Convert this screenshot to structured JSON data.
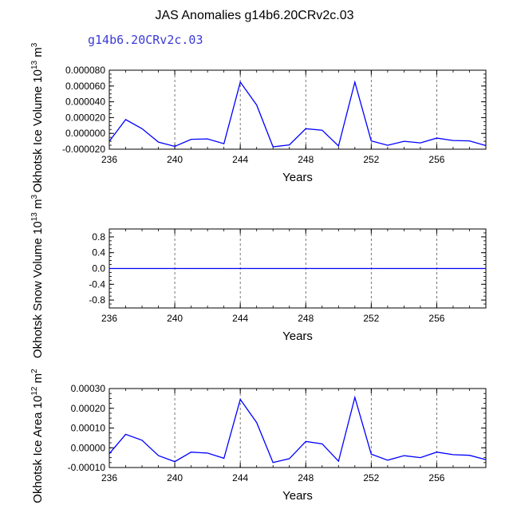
{
  "page_title": "JAS Anomalies g14b6.20CRv2c.03",
  "case_label": "g14b6.20CRv2c.03",
  "colors": {
    "series": "#0000ff",
    "case_label": "#3b3bd6",
    "axis": "#000000",
    "grid": "#555555"
  },
  "chart_data": [
    {
      "type": "line",
      "title": "",
      "ylabel": "Okhotsk Ice Volume",
      "ylabel_unit": "10",
      "ylabel_exp1": "13",
      "ylabel_unit2": "m",
      "ylabel_exp2": "3",
      "xlabel": "Years",
      "xlim": [
        236,
        259
      ],
      "ylim": [
        -2e-05,
        8e-05
      ],
      "xticks": [
        236,
        240,
        244,
        248,
        252,
        256
      ],
      "xtick_labels": [
        "236",
        "240",
        "244",
        "248",
        "252",
        "256"
      ],
      "yticks": [
        -2e-05,
        0.0,
        2e-05,
        4e-05,
        6e-05,
        8e-05
      ],
      "ytick_labels": [
        "-0.000020",
        "0.000000",
        "0.000020",
        "0.000040",
        "0.000060",
        "0.000080"
      ],
      "grid_x": [
        240,
        244,
        248,
        252,
        256
      ],
      "series": [
        {
          "name": "Okhotsk Ice Volume",
          "x": [
            236,
            237,
            238,
            239,
            240,
            241,
            242,
            243,
            244,
            245,
            246,
            247,
            248,
            249,
            250,
            251,
            252,
            253,
            254,
            255,
            256,
            257,
            258,
            259
          ],
          "values": [
            -1e-05,
            1.75e-05,
            6e-06,
            -1.1e-05,
            -1.65e-05,
            -7.5e-06,
            -7e-06,
            -1.3e-05,
            6.5e-05,
            3.6e-05,
            -1.7e-05,
            -1.45e-05,
            6e-06,
            4e-06,
            -1.6e-05,
            6.5e-05,
            -9.5e-06,
            -1.5e-05,
            -1e-05,
            -1.2e-05,
            -6e-06,
            -9e-06,
            -9.5e-06,
            -1.55e-05
          ]
        }
      ]
    },
    {
      "type": "line",
      "title": "",
      "ylabel": "Okhotsk Snow Volume",
      "ylabel_unit": "10",
      "ylabel_exp1": "13",
      "ylabel_unit2": "m",
      "ylabel_exp2": "3",
      "xlabel": "Years",
      "xlim": [
        236,
        259
      ],
      "ylim": [
        -1.0,
        1.0
      ],
      "xticks": [
        236,
        240,
        244,
        248,
        252,
        256
      ],
      "xtick_labels": [
        "236",
        "240",
        "244",
        "248",
        "252",
        "256"
      ],
      "yticks": [
        -0.8,
        -0.4,
        0.0,
        0.4,
        0.8
      ],
      "ytick_labels": [
        "-0.8",
        "-0.4",
        "0.0",
        "0.4",
        "0.8"
      ],
      "grid_x": [
        240,
        244,
        248,
        252,
        256
      ],
      "series": [
        {
          "name": "Okhotsk Snow Volume",
          "x": [
            236,
            237,
            238,
            239,
            240,
            241,
            242,
            243,
            244,
            245,
            246,
            247,
            248,
            249,
            250,
            251,
            252,
            253,
            254,
            255,
            256,
            257,
            258,
            259
          ],
          "values": [
            0,
            0,
            0,
            0,
            0,
            0,
            0,
            0,
            0,
            0,
            0,
            0,
            0,
            0,
            0,
            0,
            0,
            0,
            0,
            0,
            0,
            0,
            0,
            0
          ]
        }
      ]
    },
    {
      "type": "line",
      "title": "",
      "ylabel": "Okhotsk Ice Area",
      "ylabel_unit": "10",
      "ylabel_exp1": "12",
      "ylabel_unit2": "m",
      "ylabel_exp2": "2",
      "xlabel": "Years",
      "xlim": [
        236,
        259
      ],
      "ylim": [
        -0.0001,
        0.0003
      ],
      "xticks": [
        236,
        240,
        244,
        248,
        252,
        256
      ],
      "xtick_labels": [
        "236",
        "240",
        "244",
        "248",
        "252",
        "256"
      ],
      "yticks": [
        -0.0001,
        0.0,
        0.0001,
        0.0002,
        0.0003
      ],
      "ytick_labels": [
        "-0.00010",
        "0.00000",
        "0.00010",
        "0.00020",
        "0.00030"
      ],
      "grid_x": [
        240,
        244,
        248,
        252,
        256
      ],
      "series": [
        {
          "name": "Okhotsk Ice Area",
          "x": [
            236,
            237,
            238,
            239,
            240,
            241,
            242,
            243,
            244,
            245,
            246,
            247,
            248,
            249,
            250,
            251,
            252,
            253,
            254,
            255,
            256,
            257,
            258,
            259
          ],
          "values": [
            -3e-05,
            6.8e-05,
            3.8e-05,
            -4e-05,
            -7e-05,
            -2.2e-05,
            -2.7e-05,
            -5.3e-05,
            0.000245,
            0.000128,
            -7.5e-05,
            -5.5e-05,
            3.2e-05,
            2e-05,
            -6.8e-05,
            0.000255,
            -3.2e-05,
            -6.3e-05,
            -4e-05,
            -5e-05,
            -2.2e-05,
            -3.5e-05,
            -3.8e-05,
            -6e-05
          ]
        }
      ]
    }
  ]
}
